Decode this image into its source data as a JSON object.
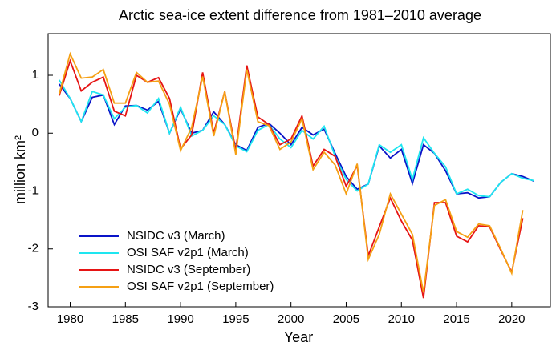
{
  "chart_data": {
    "type": "line",
    "title": "Arctic sea-ice extent difference from 1981–2010 average",
    "x_label": "Year",
    "y_label": "million km²",
    "x": [
      1979,
      1980,
      1981,
      1982,
      1983,
      1984,
      1985,
      1986,
      1987,
      1988,
      1989,
      1990,
      1991,
      1992,
      1993,
      1994,
      1995,
      1996,
      1997,
      1998,
      1999,
      2000,
      2001,
      2002,
      2003,
      2004,
      2005,
      2006,
      2007,
      2008,
      2009,
      2010,
      2011,
      2012,
      2013,
      2014,
      2015,
      2016,
      2017,
      2018,
      2019,
      2020,
      2021,
      2022
    ],
    "series": [
      {
        "name": "NSIDC v3 (March)",
        "color": "#0a14c8",
        "values": [
          0.85,
          0.6,
          0.2,
          0.62,
          0.66,
          0.15,
          0.47,
          0.48,
          0.4,
          0.55,
          0.0,
          0.42,
          0.0,
          0.05,
          0.37,
          0.15,
          -0.2,
          -0.3,
          0.1,
          0.17,
          0.0,
          -0.2,
          0.1,
          -0.03,
          0.07,
          -0.35,
          -0.75,
          -0.97,
          -0.88,
          -0.22,
          -0.43,
          -0.28,
          -0.87,
          -0.2,
          -0.35,
          -0.65,
          -1.05,
          -1.03,
          -1.12,
          -1.1,
          -0.85,
          -0.7,
          -0.75,
          -0.83
        ]
      },
      {
        "name": "OSI SAF v2p1 (March)",
        "color": "#1ee6f0",
        "values": [
          0.92,
          0.6,
          0.2,
          0.72,
          0.66,
          0.25,
          0.45,
          0.48,
          0.35,
          0.6,
          0.0,
          0.45,
          -0.05,
          0.05,
          0.3,
          0.15,
          -0.22,
          -0.32,
          0.05,
          0.15,
          -0.1,
          -0.25,
          0.05,
          -0.1,
          0.12,
          -0.4,
          -0.8,
          -1.0,
          -0.88,
          -0.2,
          -0.33,
          -0.2,
          -0.8,
          -0.08,
          -0.35,
          -0.58,
          -1.05,
          -0.97,
          -1.08,
          -1.1,
          -0.85,
          -0.7,
          -0.78,
          -0.82
        ]
      },
      {
        "name": "NSIDC v3 (September)",
        "color": "#e61414",
        "values": [
          0.65,
          1.25,
          0.73,
          0.88,
          0.97,
          0.38,
          0.3,
          1.0,
          0.88,
          0.96,
          0.6,
          -0.27,
          -0.03,
          1.05,
          0.0,
          0.72,
          -0.3,
          1.17,
          0.28,
          0.15,
          -0.2,
          -0.1,
          0.3,
          -0.57,
          -0.28,
          -0.4,
          -0.92,
          -0.56,
          -2.12,
          -1.62,
          -1.12,
          -1.52,
          -1.85,
          -2.85,
          -1.2,
          -1.2,
          -1.78,
          -1.88,
          -1.6,
          -1.62,
          -2.02,
          -2.4,
          -1.47,
          null
        ]
      },
      {
        "name": "OSI SAF v2p1 (September)",
        "color": "#f5a014",
        "values": [
          0.68,
          1.37,
          0.95,
          0.97,
          1.1,
          0.52,
          0.52,
          1.05,
          0.88,
          0.9,
          0.5,
          -0.3,
          0.1,
          0.98,
          -0.05,
          0.72,
          -0.37,
          1.1,
          0.2,
          0.13,
          -0.28,
          -0.15,
          0.25,
          -0.63,
          -0.33,
          -0.55,
          -1.05,
          -0.53,
          -2.18,
          -1.75,
          -1.05,
          -1.4,
          -1.75,
          -2.75,
          -1.25,
          -1.15,
          -1.7,
          -1.8,
          -1.57,
          -1.6,
          -2.0,
          -2.42,
          -1.33,
          null
        ]
      }
    ],
    "xlim": [
      1978,
      2023.5
    ],
    "xticks": [
      1980,
      1985,
      1990,
      1995,
      2000,
      2005,
      2010,
      2015,
      2020
    ],
    "ylim": [
      -3,
      1.72
    ],
    "yticks": [
      -3,
      -2,
      -1,
      0,
      1
    ],
    "legend": "lower-left"
  }
}
